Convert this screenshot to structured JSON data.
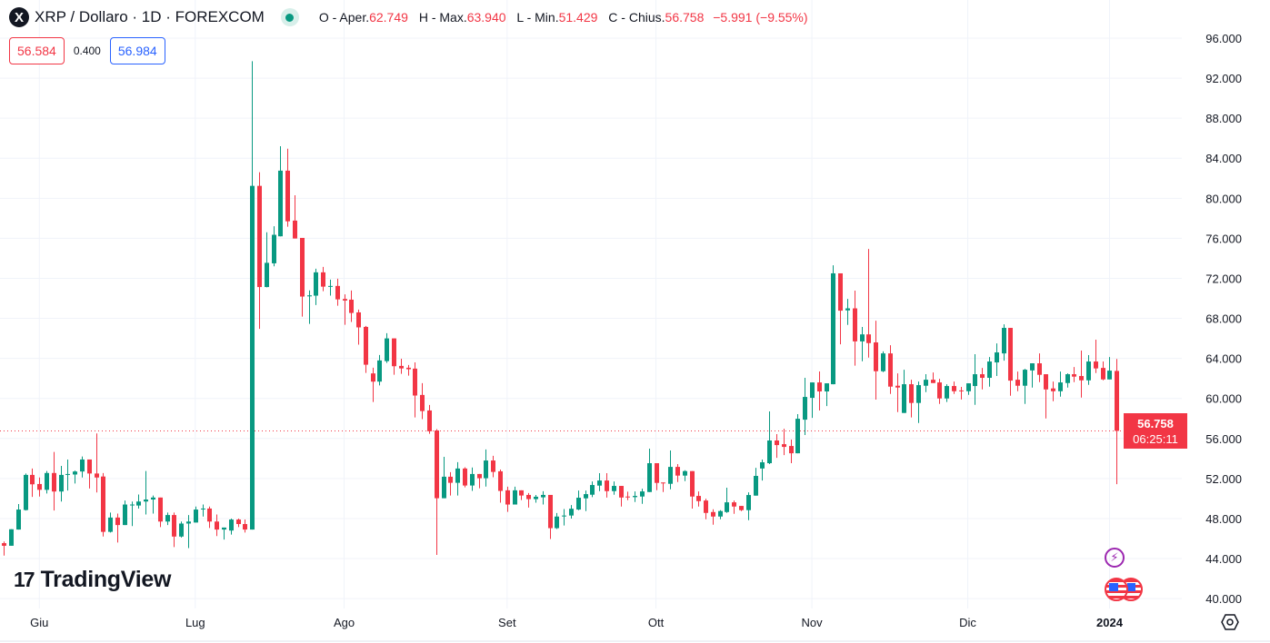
{
  "header": {
    "logo_letter": "X",
    "title": "XRP / Dollaro · 1D · FOREXCOM",
    "ohlc": [
      {
        "label": "O - Aper.",
        "value": "62.749"
      },
      {
        "label": "H - Max.",
        "value": "63.940"
      },
      {
        "label": "L - Min.",
        "value": "51.429"
      },
      {
        "label": "C - Chius.",
        "value": "56.758"
      }
    ],
    "change": "−5.991 (−9.55%)",
    "sell_price": "56.584",
    "spread": "0.400",
    "buy_price": "56.984"
  },
  "last_price": {
    "value": "56.758",
    "countdown": "06:25:11"
  },
  "branding": {
    "name": "TradingView",
    "mark": "17"
  },
  "colors": {
    "up": "#089981",
    "down": "#f23645",
    "grid": "#f0f3fa",
    "event": "#9c27b0"
  },
  "chart_data": {
    "type": "candlestick",
    "title": "XRP / Dollaro · 1D · FOREXCOM",
    "ylim": [
      38.5,
      97
    ],
    "y_ticks": [
      "40.000",
      "44.000",
      "48.000",
      "52.000",
      "56.000",
      "60.000",
      "64.000",
      "68.000",
      "72.000",
      "76.000",
      "80.000",
      "84.000",
      "88.000",
      "92.000",
      "96.000"
    ],
    "x_labels": [
      {
        "label": "Giu",
        "index": 5
      },
      {
        "label": "Lug",
        "index": 27
      },
      {
        "label": "Ago",
        "index": 48
      },
      {
        "label": "Set",
        "index": 71
      },
      {
        "label": "Ott",
        "index": 92
      },
      {
        "label": "Nov",
        "index": 114
      },
      {
        "label": "Dic",
        "index": 136
      },
      {
        "label": "2024",
        "index": 156
      }
    ],
    "last_close": 56.758,
    "candles_ohlc": [
      [
        45.54,
        45.7,
        44.3,
        45.28
      ],
      [
        45.28,
        46.93,
        45.28,
        46.93
      ],
      [
        46.9,
        49.45,
        46.9,
        48.9
      ],
      [
        48.85,
        52.5,
        48.8,
        52.36
      ],
      [
        52.36,
        53,
        50.16,
        51.42
      ],
      [
        51.45,
        52.1,
        50.2,
        50.87
      ],
      [
        50.87,
        52.75,
        50.5,
        52.55
      ],
      [
        52.55,
        54.65,
        48.8,
        50.7
      ],
      [
        50.7,
        53.26,
        49.7,
        52.36
      ],
      [
        52.4,
        53.9,
        50.8,
        52.45
      ],
      [
        52.4,
        52.8,
        51.5,
        52.7
      ],
      [
        52.7,
        54.2,
        52.1,
        53.9
      ],
      [
        53.9,
        53.9,
        51,
        52.5
      ],
      [
        52.5,
        56.5,
        50.6,
        52.1
      ],
      [
        52.2,
        52.55,
        46.2,
        46.67
      ],
      [
        46.67,
        48.6,
        46.6,
        48.1
      ],
      [
        48.1,
        48.5,
        45.6,
        47.35
      ],
      [
        47.35,
        49.8,
        47.35,
        49.4
      ],
      [
        49.35,
        49.7,
        47.25,
        49.4
      ],
      [
        49.3,
        50.4,
        49,
        49.7
      ],
      [
        49.7,
        52.75,
        48.4,
        49.9
      ],
      [
        49.9,
        50.3,
        48.5,
        50.1
      ],
      [
        50.1,
        50.1,
        47.15,
        47.7
      ],
      [
        47.7,
        48.6,
        47.35,
        48.35
      ],
      [
        48.35,
        48.6,
        45.15,
        46.2
      ],
      [
        46.2,
        47.7,
        46.1,
        47.5
      ],
      [
        47.5,
        48.35,
        45.05,
        47.7
      ],
      [
        47.6,
        49.2,
        47.6,
        48.9
      ],
      [
        48.95,
        49.4,
        48.2,
        49
      ],
      [
        49,
        49.2,
        47.05,
        47.7
      ],
      [
        47.7,
        48.4,
        46.25,
        46.9
      ],
      [
        46.9,
        47.1,
        45.9,
        47.1
      ],
      [
        46.8,
        48,
        46.4,
        47.9
      ],
      [
        47.9,
        48,
        47.15,
        47.45
      ],
      [
        47.45,
        47.9,
        46.6,
        46.9
      ],
      [
        46.9,
        93.7,
        46.9,
        81.24
      ],
      [
        81.24,
        82.6,
        66.95,
        71.13
      ],
      [
        71.13,
        76.6,
        71.1,
        73.55
      ],
      [
        73.5,
        77.2,
        73.2,
        76.35
      ],
      [
        76.2,
        85.2,
        76.2,
        82.76
      ],
      [
        82.76,
        84.95,
        77.16,
        77.7
      ],
      [
        77.77,
        80.3,
        75.98,
        75.98
      ],
      [
        76.04,
        76.04,
        68.18,
        70.18
      ],
      [
        70.2,
        70.8,
        67.45,
        70.3
      ],
      [
        70.27,
        72.96,
        69.33,
        72.6
      ],
      [
        72.6,
        73.14,
        70.72,
        71.17
      ],
      [
        71.17,
        71.87,
        70.27,
        71.24
      ],
      [
        71.24,
        71.96,
        69.27,
        69.9
      ],
      [
        69.94,
        70.4,
        67.36,
        69.78
      ],
      [
        69.87,
        70.78,
        67.64,
        68.54
      ],
      [
        68.6,
        68.88,
        65.37,
        67.1
      ],
      [
        67.15,
        67.24,
        62.55,
        63.37
      ],
      [
        62.5,
        63.07,
        59.65,
        61.68
      ],
      [
        61.68,
        64.34,
        61.3,
        63.8
      ],
      [
        63.73,
        66.52,
        63.55,
        66
      ],
      [
        66,
        66,
        62.37,
        63.22
      ],
      [
        63.25,
        63.97,
        62.46,
        63
      ],
      [
        63.07,
        63.34,
        62.28,
        62.92
      ],
      [
        62.98,
        63.61,
        58.1,
        60.29
      ],
      [
        60.35,
        61.53,
        57.93,
        58.74
      ],
      [
        58.8,
        59.35,
        56.47,
        56.72
      ],
      [
        56.8,
        56.93,
        44.37,
        50.03
      ],
      [
        50.03,
        54.17,
        50.03,
        52.18
      ],
      [
        52.18,
        52.63,
        50.3,
        51.57
      ],
      [
        51.57,
        53.63,
        50.3,
        53
      ],
      [
        53,
        53.12,
        51.12,
        51.3
      ],
      [
        51.3,
        53.1,
        50.76,
        52.45
      ],
      [
        52.45,
        52.45,
        51.03,
        52.03
      ],
      [
        52.03,
        54.9,
        51.2,
        53.8
      ],
      [
        53.8,
        54.27,
        52.12,
        52.66
      ],
      [
        52.72,
        52.9,
        49.58,
        50.76
      ],
      [
        50.82,
        51.18,
        48.67,
        49.4
      ],
      [
        49.4,
        51.18,
        49.4,
        50.82
      ],
      [
        50.82,
        50.82,
        49.85,
        50.3
      ],
      [
        50.36,
        50.55,
        49.1,
        49.94
      ],
      [
        49.94,
        50.36,
        49.58,
        50.18
      ],
      [
        50.12,
        50.73,
        49.4,
        50.36
      ],
      [
        50.36,
        50.36,
        45.95,
        47.04
      ],
      [
        47.04,
        48.55,
        46.95,
        48.2
      ],
      [
        48.25,
        48.95,
        47.3,
        48.3
      ],
      [
        48.3,
        49.35,
        48,
        48.98
      ],
      [
        48.9,
        50.8,
        48.84,
        50.08
      ],
      [
        50.02,
        50.8,
        48.75,
        50.44
      ],
      [
        50.38,
        51.71,
        50.14,
        51.35
      ],
      [
        51.29,
        52.53,
        50.74,
        51.8
      ],
      [
        51.8,
        52.53,
        50.1,
        50.74
      ],
      [
        50.74,
        51.71,
        50.38,
        51.26
      ],
      [
        51.26,
        51.26,
        49.2,
        50.1
      ],
      [
        50.2,
        50.68,
        49.83,
        50.14
      ],
      [
        50.14,
        50.71,
        49.65,
        50.26
      ],
      [
        50.2,
        50.98,
        49.47,
        50.71
      ],
      [
        50.65,
        54.98,
        50.65,
        53.53
      ],
      [
        53.53,
        53.53,
        50.83,
        51.56
      ],
      [
        51.6,
        51.6,
        50.65,
        51.53
      ],
      [
        51.47,
        54.8,
        50.92,
        53.16
      ],
      [
        53.16,
        53.44,
        51.65,
        52.29
      ],
      [
        52.29,
        52.83,
        51.74,
        52.74
      ],
      [
        52.74,
        52.74,
        49,
        50.2
      ],
      [
        50.26,
        50.71,
        49.2,
        49.74
      ],
      [
        49.8,
        49.98,
        47.93,
        48.56
      ],
      [
        48.65,
        48.93,
        47.38,
        48.2
      ],
      [
        48.2,
        48.84,
        47.93,
        48.75
      ],
      [
        48.65,
        51.08,
        48.56,
        49.62
      ],
      [
        49.62,
        49.8,
        48.47,
        49.2
      ],
      [
        49.26,
        49.26,
        48.75,
        48.84
      ],
      [
        48.84,
        50.62,
        47.84,
        50.35
      ],
      [
        50.29,
        53.07,
        50.29,
        52.26
      ],
      [
        53,
        53.9,
        51.8,
        53.62
      ],
      [
        53.53,
        58.7,
        53.44,
        55.8
      ],
      [
        55.8,
        56.43,
        54.07,
        55.34
      ],
      [
        55.43,
        56.97,
        54.34,
        55.16
      ],
      [
        55.25,
        55.89,
        53.53,
        54.52
      ],
      [
        54.52,
        58.43,
        54.52,
        57.97
      ],
      [
        57.88,
        62.06,
        56.34,
        60.15
      ],
      [
        60.06,
        61.6,
        58.06,
        61.6
      ],
      [
        61.6,
        62.7,
        58.79,
        60.7
      ],
      [
        60.7,
        61.51,
        59.24,
        61.51
      ],
      [
        61.42,
        73.3,
        61.42,
        72.5
      ],
      [
        72.5,
        72.5,
        65.41,
        68.77
      ],
      [
        68.8,
        69.95,
        67.35,
        69
      ],
      [
        69,
        70.77,
        63.27,
        65.7
      ],
      [
        65.7,
        67.14,
        63.72,
        66.4
      ],
      [
        66.4,
        74.94,
        64.08,
        65.53
      ],
      [
        65.6,
        67.77,
        59.88,
        62.72
      ],
      [
        62.72,
        64.7,
        62.63,
        64.5
      ],
      [
        64.5,
        65.32,
        60.45,
        61.18
      ],
      [
        61.27,
        62.5,
        58.64,
        61.09
      ],
      [
        58.55,
        62.87,
        58.55,
        61.42
      ],
      [
        61.42,
        61.87,
        58.1,
        59.55
      ],
      [
        59.55,
        61.69,
        57.55,
        61.33
      ],
      [
        61.27,
        62.42,
        60.63,
        61.87
      ],
      [
        61.87,
        62.6,
        61.54,
        61.54
      ],
      [
        61.6,
        61.96,
        59.45,
        60
      ],
      [
        60,
        61.42,
        59.64,
        61.24
      ],
      [
        61.24,
        61.69,
        60.45,
        60.72
      ],
      [
        60.8,
        61.15,
        59.9,
        60.72
      ],
      [
        60.72,
        61.51,
        60.36,
        61.51
      ],
      [
        61.24,
        64.42,
        59.36,
        62.42
      ],
      [
        62.42,
        63.05,
        60.9,
        62.06
      ],
      [
        62.06,
        64.14,
        61.18,
        63.69
      ],
      [
        63.6,
        65.5,
        62.24,
        64.6
      ],
      [
        64.5,
        67.4,
        63.78,
        67.05
      ],
      [
        67.05,
        67.05,
        60.27,
        61.78
      ],
      [
        61.87,
        62.69,
        60.72,
        61.27
      ],
      [
        61.27,
        62.96,
        59.45,
        62.87
      ],
      [
        62.8,
        63.51,
        61.09,
        63.51
      ],
      [
        63.51,
        64.5,
        61.63,
        62.36
      ],
      [
        62.42,
        62.42,
        58,
        60.9
      ],
      [
        61,
        61.69,
        59.73,
        60.72
      ],
      [
        60.72,
        62.69,
        60.18,
        61.6
      ],
      [
        61.54,
        62.5,
        61.09,
        62.42
      ],
      [
        62.42,
        63.14,
        61.63,
        62.18
      ],
      [
        62.24,
        64.78,
        60.09,
        61.81
      ],
      [
        61.81,
        64.33,
        61.36,
        63.69
      ],
      [
        63.69,
        65.87,
        62.54,
        63
      ],
      [
        63.05,
        63.69,
        61.81,
        61.9
      ],
      [
        61.9,
        64.14,
        61.9,
        62.78
      ],
      [
        62.749,
        63.94,
        51.429,
        56.758
      ]
    ]
  }
}
